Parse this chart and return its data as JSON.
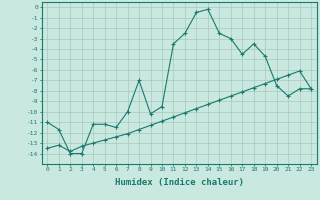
{
  "xlabel": "Humidex (Indice chaleur)",
  "x_data": [
    0,
    1,
    2,
    3,
    4,
    5,
    6,
    7,
    8,
    9,
    10,
    11,
    12,
    13,
    14,
    15,
    16,
    17,
    18,
    19,
    20,
    21,
    22,
    23
  ],
  "y_main": [
    -11,
    -11.7,
    -14,
    -14,
    -11.2,
    -11.2,
    -11.5,
    -10,
    -7,
    -10.2,
    -9.5,
    -3.5,
    -2.5,
    -0.5,
    -0.2,
    -2.5,
    -3.0,
    -4.5,
    -3.5,
    -4.7,
    -7.5,
    -8.5,
    -7.8,
    -7.8
  ],
  "y_trend": [
    -13.5,
    -13.2,
    -13.8,
    -13.3,
    -13.0,
    -12.7,
    -12.4,
    -12.1,
    -11.7,
    -11.3,
    -10.9,
    -10.5,
    -10.1,
    -9.7,
    -9.3,
    -8.9,
    -8.5,
    -8.1,
    -7.7,
    -7.3,
    -6.9,
    -6.5,
    -6.1,
    -7.8
  ],
  "line_color": "#1a7a6e",
  "bg_color": "#c8e8e0",
  "grid_color": "#a8c8c0",
  "ylim": [
    -15,
    0.5
  ],
  "xlim": [
    -0.5,
    23.5
  ],
  "yticks": [
    0,
    -1,
    -2,
    -3,
    -4,
    -5,
    -6,
    -7,
    -8,
    -9,
    -10,
    -11,
    -12,
    -13,
    -14
  ],
  "xticks": [
    0,
    1,
    2,
    3,
    4,
    5,
    6,
    7,
    8,
    9,
    10,
    11,
    12,
    13,
    14,
    15,
    16,
    17,
    18,
    19,
    20,
    21,
    22,
    23
  ],
  "tick_fontsize": 4.5,
  "xlabel_fontsize": 6.5
}
